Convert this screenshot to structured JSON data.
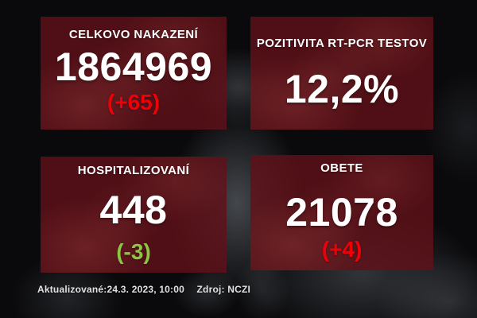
{
  "panels": [
    {
      "id": "total-infected",
      "title": "CELKOVO NAKAZENÍ",
      "value": "1864969",
      "delta": "(+65)",
      "delta_color": "#ee0008"
    },
    {
      "id": "pcr-positivity",
      "title": "POZITIVITA RT-PCR TESTOV",
      "value": "12,2%"
    },
    {
      "id": "hospitalized",
      "title": "HOSPITALIZOVANÍ",
      "value": "448",
      "delta": "(-3)",
      "delta_color": "#8dc63f"
    },
    {
      "id": "deaths",
      "title": "OBETE",
      "value": "21078",
      "delta": "(+4)",
      "delta_color": "#ee0008"
    }
  ],
  "footer": {
    "updated": "Aktualizované:24.3. 2023, 10:00",
    "source": "Zdroj: NCZI"
  },
  "colors": {
    "panel_red": "#601118",
    "background": "#0a0a0c",
    "text": "#ffffff",
    "delta_increase_red": "#ee0008",
    "delta_decrease_green": "#8dc63f"
  }
}
